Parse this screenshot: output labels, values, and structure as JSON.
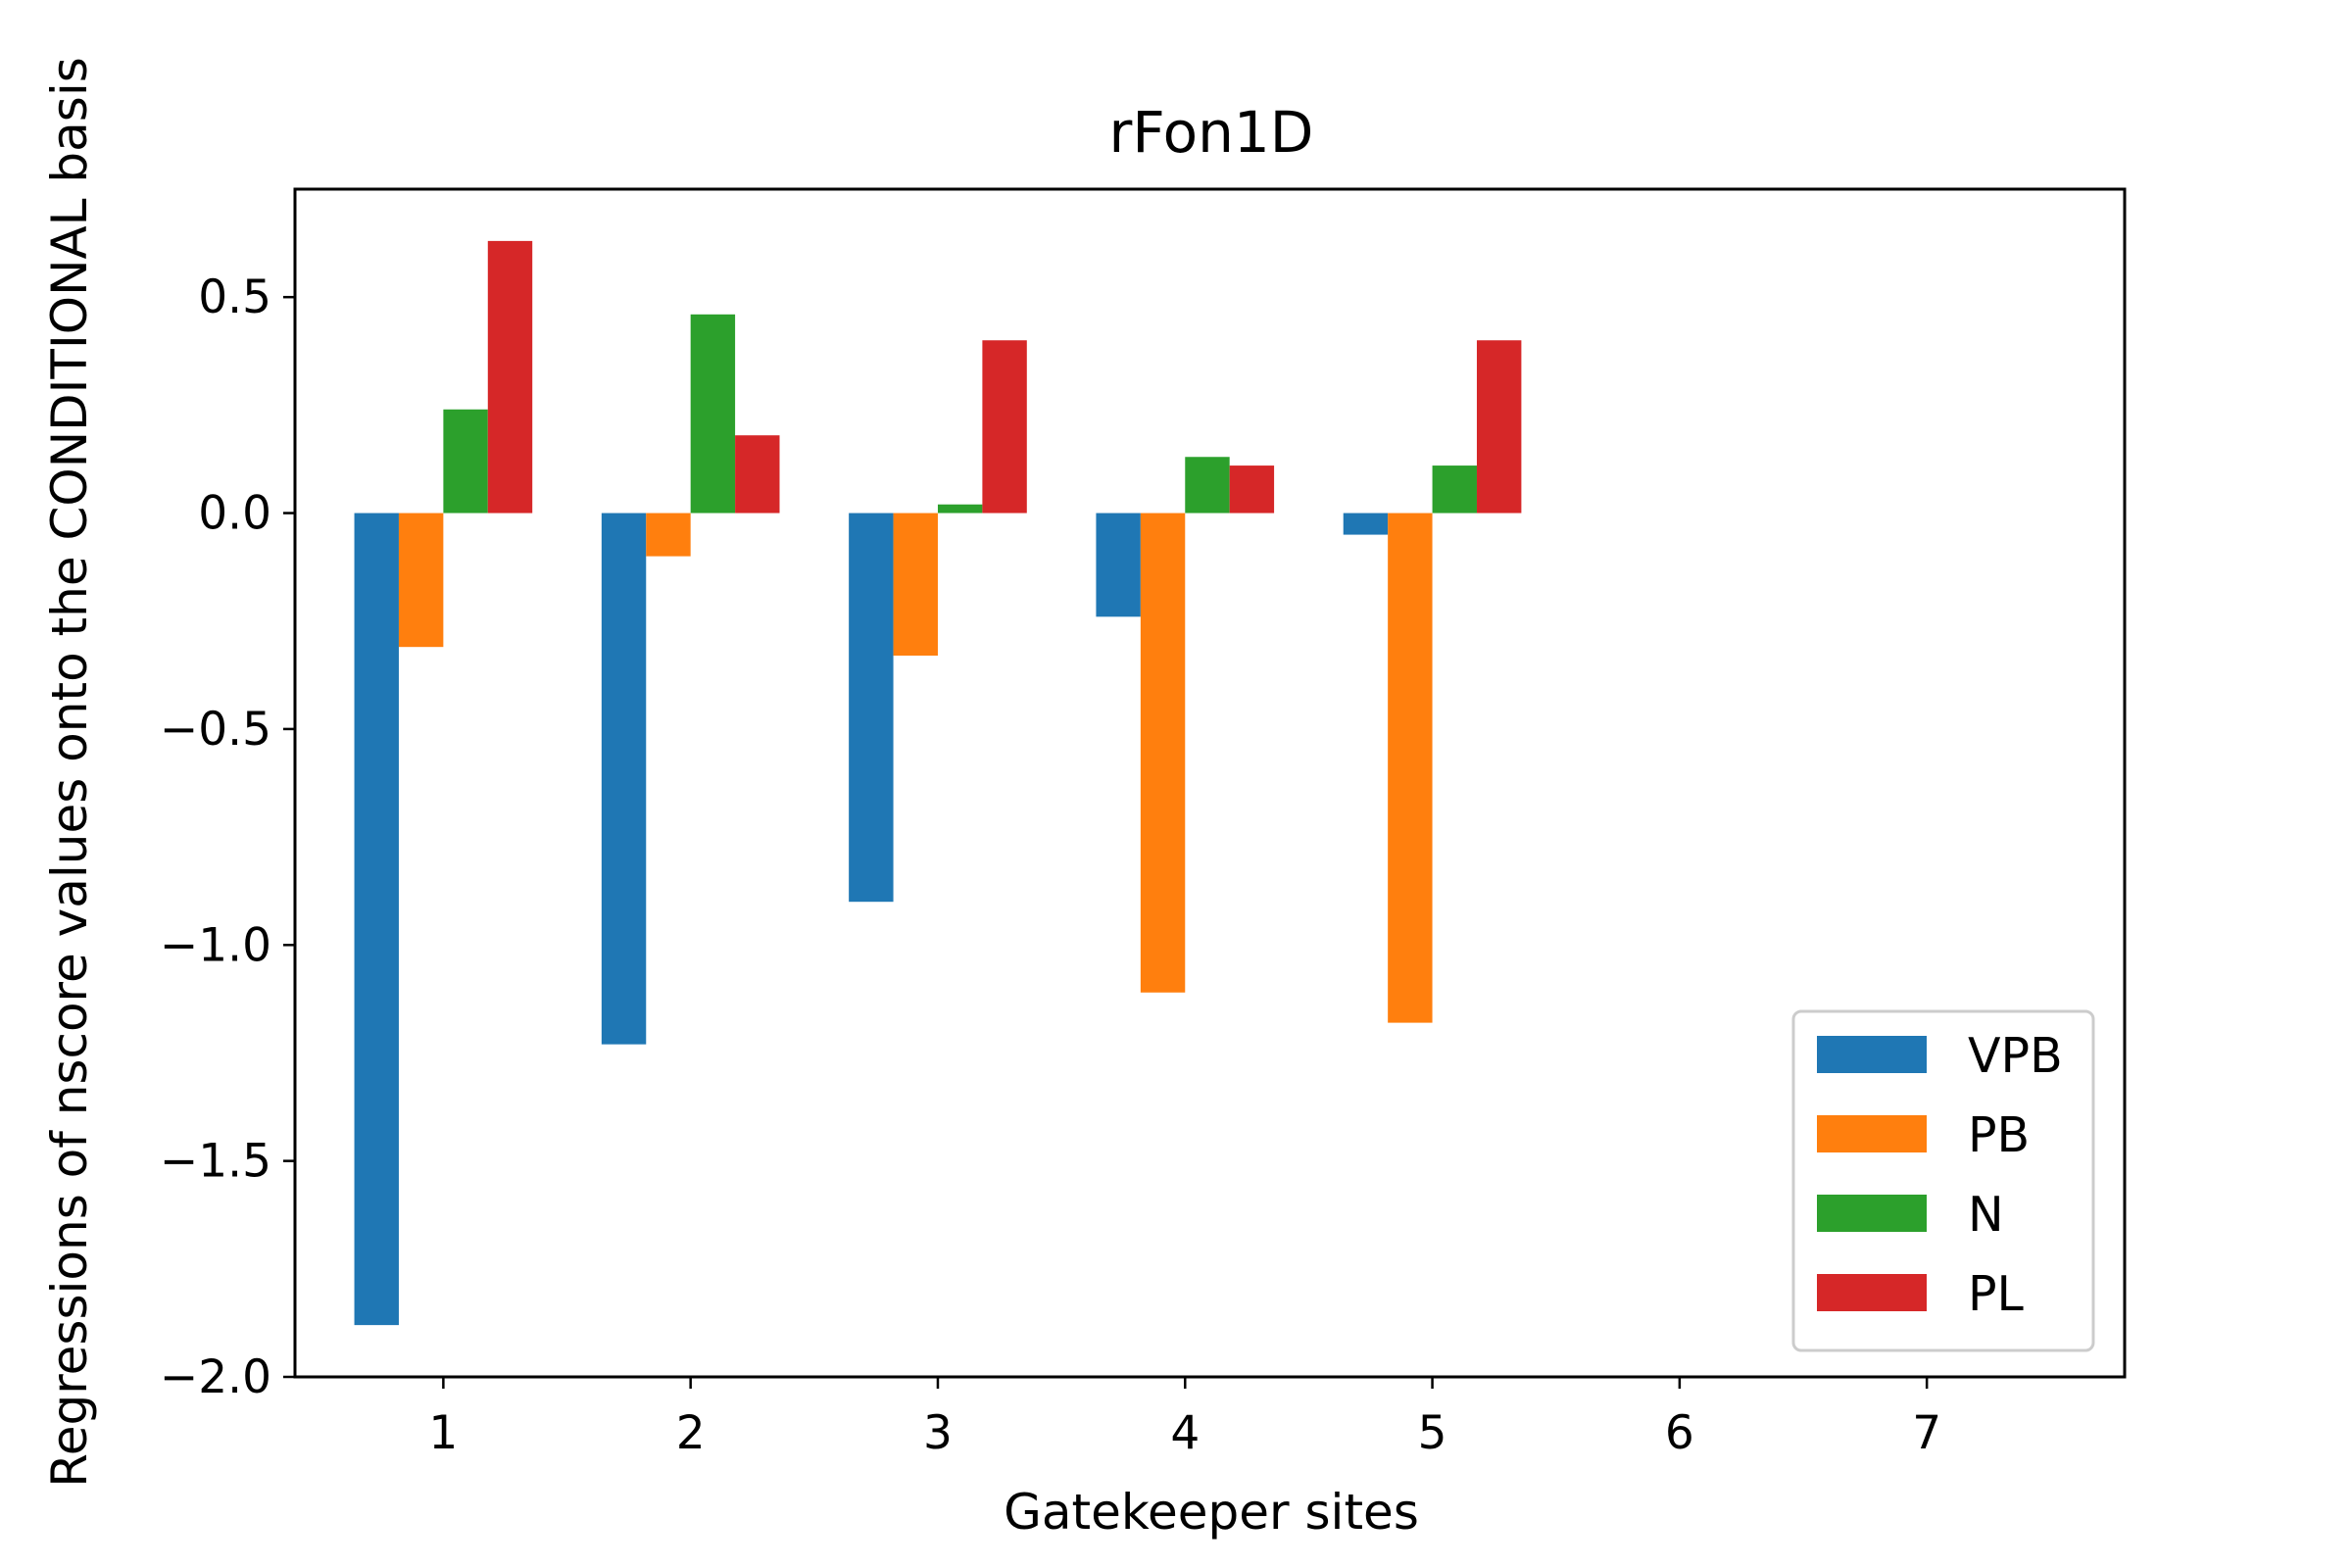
{
  "chart_data": {
    "type": "bar",
    "title": "rFon1D",
    "xlabel": "Gatekeeper sites",
    "ylabel": "Regressions of nscore values onto the CONDITIONAL basis",
    "categories": [
      "1",
      "2",
      "3",
      "4",
      "5",
      "6",
      "7"
    ],
    "xlim": [
      0.4,
      7.8
    ],
    "ylim": [
      -2.0,
      0.75
    ],
    "yticks": [
      -2.0,
      -1.5,
      -1.0,
      -0.5,
      0.0,
      0.5
    ],
    "ytick_labels": [
      "−2.0",
      "−1.5",
      "−1.0",
      "−0.5",
      "0.0",
      "0.5"
    ],
    "grid": false,
    "legend_position": "lower-right",
    "series": [
      {
        "name": "VPB",
        "color": "#1f77b4",
        "values": [
          -1.88,
          -1.23,
          -0.9,
          -0.24,
          -0.05,
          null,
          null
        ]
      },
      {
        "name": "PB",
        "color": "#ff7f0e",
        "values": [
          -0.31,
          -0.1,
          -0.33,
          -1.11,
          -1.18,
          null,
          null
        ]
      },
      {
        "name": "N",
        "color": "#2ca02c",
        "values": [
          0.24,
          0.46,
          0.02,
          0.13,
          0.11,
          null,
          null
        ]
      },
      {
        "name": "PL",
        "color": "#d62728",
        "values": [
          0.63,
          0.18,
          0.4,
          0.11,
          0.4,
          null,
          null
        ]
      }
    ]
  }
}
